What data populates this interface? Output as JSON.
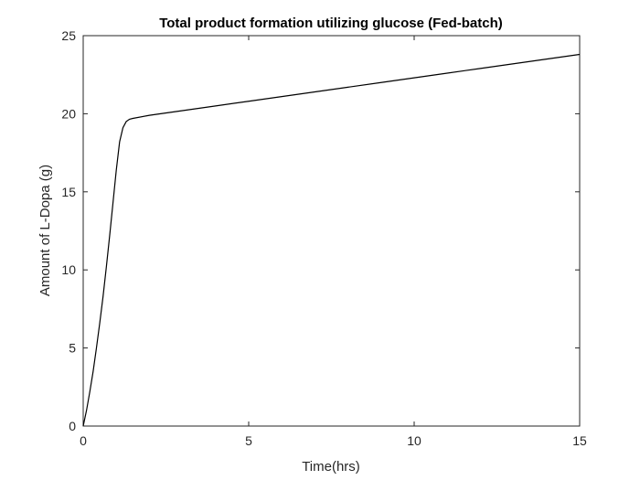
{
  "chart_data": {
    "type": "line",
    "title": "Total product formation utilizing glucose (Fed-batch)",
    "xlabel": "Time(hrs)",
    "ylabel": "Amount of L-Dopa (g)",
    "xlim": [
      0,
      15
    ],
    "ylim": [
      0,
      25
    ],
    "xticks": [
      0,
      5,
      10,
      15
    ],
    "yticks": [
      0,
      5,
      10,
      15,
      20,
      25
    ],
    "xtick_labels": [
      "0",
      "5",
      "10",
      "15"
    ],
    "ytick_labels": [
      "0",
      "5",
      "10",
      "15",
      "20",
      "25"
    ],
    "grid": false,
    "legend": false,
    "series": [
      {
        "color": "#000000",
        "x": [
          0,
          0.1,
          0.2,
          0.3,
          0.4,
          0.5,
          0.6,
          0.7,
          0.8,
          0.9,
          1.0,
          1.1,
          1.2,
          1.3,
          1.4,
          1.5,
          2,
          3,
          4,
          5,
          6,
          7,
          8,
          9,
          10,
          11,
          12,
          13,
          14,
          15
        ],
        "y": [
          0,
          1.0,
          2.2,
          3.5,
          5.0,
          6.6,
          8.3,
          10.2,
          12.2,
          14.3,
          16.4,
          18.2,
          19.1,
          19.5,
          19.65,
          19.7,
          19.9,
          20.2,
          20.5,
          20.8,
          21.1,
          21.4,
          21.7,
          22.0,
          22.3,
          22.6,
          22.9,
          23.2,
          23.5,
          23.8
        ]
      }
    ]
  }
}
